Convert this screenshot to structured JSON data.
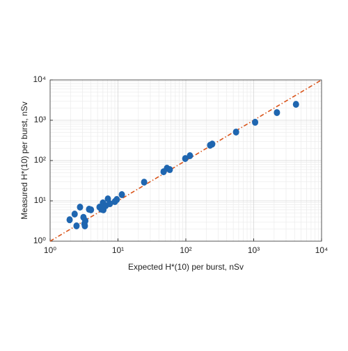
{
  "chart_data": {
    "type": "scatter",
    "xlabel": "Expected H*(10) per burst, nSv",
    "ylabel": "Measured H*(10) per burst, nSv",
    "log_x": true,
    "log_y": true,
    "grid": true,
    "minor_grid": true,
    "xlim": [
      1,
      10000
    ],
    "ylim": [
      1,
      10000
    ],
    "xticks": [
      {
        "value": 1,
        "label": "10⁰"
      },
      {
        "value": 10,
        "label": "10¹"
      },
      {
        "value": 100,
        "label": "10²"
      },
      {
        "value": 1000,
        "label": "10³"
      },
      {
        "value": 10000,
        "label": "10⁴"
      }
    ],
    "yticks": [
      {
        "value": 1,
        "label": "10⁰"
      },
      {
        "value": 10,
        "label": "10¹"
      },
      {
        "value": 100,
        "label": "10²"
      },
      {
        "value": 1000,
        "label": "10³"
      },
      {
        "value": 10000,
        "label": "10⁴"
      }
    ],
    "reference_line": {
      "x": [
        1,
        10000
      ],
      "y": [
        1,
        10000
      ],
      "color": "#d95319"
    },
    "series": [
      {
        "color": "#1f66b0",
        "x": [
          1.94,
          2.3,
          2.45,
          2.76,
          3.1,
          3.2,
          3.3,
          3.25,
          3.75,
          4.0,
          5.35,
          5.7,
          6.0,
          6.1,
          6.6,
          7.1,
          7.6,
          9.0,
          9.6,
          11.4,
          24.3,
          47,
          52.7,
          58,
          98,
          115,
          228,
          245,
          550,
          1050,
          2200,
          4200
        ],
        "values": [
          3.4,
          4.7,
          2.4,
          7.0,
          3.9,
          2.7,
          3.2,
          2.4,
          6.2,
          6.0,
          7.0,
          6.2,
          8.9,
          6.0,
          7.6,
          11.2,
          8.5,
          9.6,
          10.8,
          14.3,
          29.1,
          52.8,
          64.5,
          59.6,
          112,
          132,
          240,
          257,
          510,
          890,
          1550,
          2480
        ]
      }
    ]
  }
}
